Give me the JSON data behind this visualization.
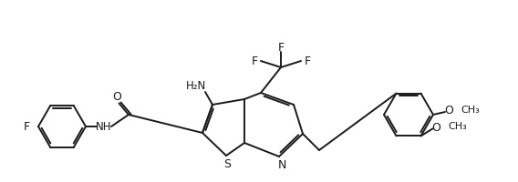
{
  "bg": "#ffffff",
  "lc": "#1a1a1a",
  "lw": 1.4,
  "figsize": [
    5.68,
    2.01
  ],
  "dpi": 100,
  "xlim": [
    0,
    568
  ],
  "ylim": [
    0,
    201
  ]
}
